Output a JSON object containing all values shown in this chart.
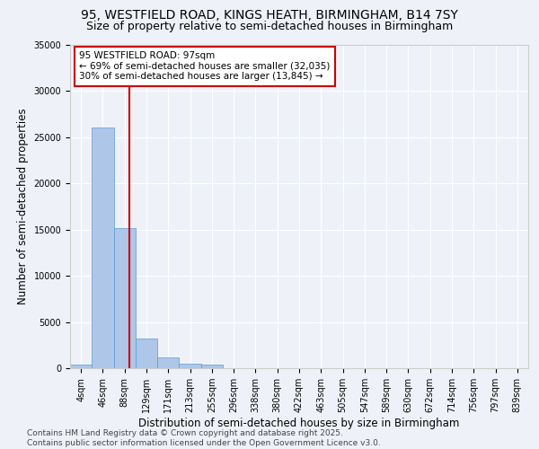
{
  "title_line1": "95, WESTFIELD ROAD, KINGS HEATH, BIRMINGHAM, B14 7SY",
  "title_line2": "Size of property relative to semi-detached houses in Birmingham",
  "xlabel": "Distribution of semi-detached houses by size in Birmingham",
  "ylabel": "Number of semi-detached properties",
  "categories": [
    "4sqm",
    "46sqm",
    "88sqm",
    "129sqm",
    "171sqm",
    "213sqm",
    "255sqm",
    "296sqm",
    "338sqm",
    "380sqm",
    "422sqm",
    "463sqm",
    "505sqm",
    "547sqm",
    "589sqm",
    "630sqm",
    "672sqm",
    "714sqm",
    "756sqm",
    "797sqm",
    "839sqm"
  ],
  "values": [
    400,
    26100,
    15200,
    3200,
    1200,
    500,
    380,
    0,
    0,
    0,
    0,
    0,
    0,
    0,
    0,
    0,
    0,
    0,
    0,
    0,
    0
  ],
  "bar_color": "#aec6e8",
  "bar_edgecolor": "#5b9bd5",
  "highlight_line_color": "#cc0000",
  "annotation_text": "95 WESTFIELD ROAD: 97sqm\n← 69% of semi-detached houses are smaller (32,035)\n30% of semi-detached houses are larger (13,845) →",
  "annotation_box_color": "#ffffff",
  "annotation_box_edgecolor": "#cc0000",
  "ylim": [
    0,
    35000
  ],
  "yticks": [
    0,
    5000,
    10000,
    15000,
    20000,
    25000,
    30000,
    35000
  ],
  "footer_text": "Contains HM Land Registry data © Crown copyright and database right 2025.\nContains public sector information licensed under the Open Government Licence v3.0.",
  "background_color": "#eef2f8",
  "grid_color": "#ffffff",
  "title_fontsize": 10,
  "subtitle_fontsize": 9,
  "tick_fontsize": 7,
  "label_fontsize": 8.5,
  "footer_fontsize": 6.5,
  "annotation_fontsize": 7.5
}
